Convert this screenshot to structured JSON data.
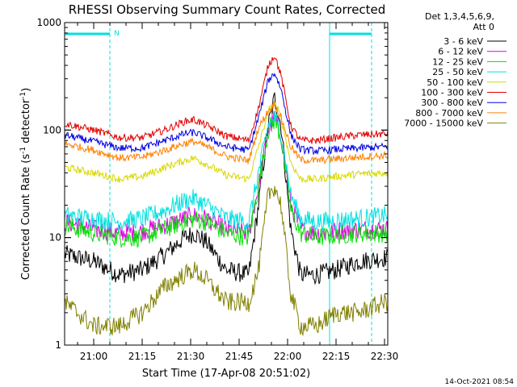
{
  "chart_data": {
    "type": "line",
    "title": "RHESSI Observing Summary Count Rates, Corrected",
    "ylabel_prefix": "Corrected Count Rate (s",
    "ylabel_exp1": "-1",
    "ylabel_mid": " detector",
    "ylabel_exp2": "-1",
    "ylabel_suffix": ")",
    "xlabel": "Start Time (17-Apr-08 20:51:02)",
    "yscale": "log",
    "ylim": [
      1,
      1000
    ],
    "xlim": [
      "20:51",
      "22:31"
    ],
    "y_ticks": [
      {
        "value": 1,
        "label": "1"
      },
      {
        "value": 10,
        "label": "10"
      },
      {
        "value": 100,
        "label": "100"
      },
      {
        "value": 1000,
        "label": "1000"
      }
    ],
    "x_ticks": [
      {
        "time": "21:00",
        "label": "21:00"
      },
      {
        "time": "21:15",
        "label": "21:15"
      },
      {
        "time": "21:30",
        "label": "21:30"
      },
      {
        "time": "21:45",
        "label": "21:45"
      },
      {
        "time": "22:00",
        "label": "22:00"
      },
      {
        "time": "22:15",
        "label": "22:15"
      },
      {
        "time": "22:30",
        "label": "22:30"
      }
    ],
    "legend_header": [
      "Det 1,3,4,5,6,9,",
      "Att 0"
    ],
    "legend_placement": "right, outside plot",
    "night_intervals": [
      [
        "20:51",
        "21:05"
      ],
      [
        "22:13",
        "22:26"
      ]
    ],
    "saa_marker": "N",
    "series": [
      {
        "name": "3 - 6 keV",
        "color": "#000000",
        "times": [
          "20:51",
          "21:00",
          "21:08",
          "21:15",
          "21:22",
          "21:28",
          "21:31",
          "21:35",
          "21:41",
          "21:48",
          "21:51",
          "21:54",
          "21:56",
          "21:58",
          "22:01",
          "22:04",
          "22:09",
          "22:15",
          "22:22",
          "22:30"
        ],
        "values": [
          7,
          6,
          4.5,
          5,
          7,
          10,
          11,
          9,
          5,
          4.5,
          20,
          110,
          200,
          110,
          12,
          4.5,
          4.5,
          5,
          6,
          6.5
        ]
      },
      {
        "name": "6 - 12 keV",
        "color": "#e000e0",
        "times": [
          "20:51",
          "21:00",
          "21:08",
          "21:15",
          "21:22",
          "21:28",
          "21:31",
          "21:35",
          "21:41",
          "21:48",
          "21:51",
          "21:54",
          "21:56",
          "21:58",
          "22:01",
          "22:04",
          "22:09",
          "22:15",
          "22:22",
          "22:30"
        ],
        "values": [
          14,
          12,
          11,
          11.5,
          13,
          15,
          16,
          15,
          12,
          11,
          30,
          100,
          130,
          90,
          20,
          12,
          11,
          11.5,
          12,
          12
        ]
      },
      {
        "name": "12 - 25 keV",
        "color": "#00e000",
        "times": [
          "20:51",
          "21:00",
          "21:08",
          "21:15",
          "21:22",
          "21:28",
          "21:31",
          "21:35",
          "21:41",
          "21:48",
          "21:51",
          "21:54",
          "21:56",
          "21:58",
          "22:01",
          "22:04",
          "22:09",
          "22:15",
          "22:22",
          "22:30"
        ],
        "values": [
          13,
          11,
          10,
          10,
          12,
          14,
          15,
          14,
          11,
          10,
          30,
          100,
          125,
          85,
          18,
          11,
          10,
          10.5,
          11,
          11
        ]
      },
      {
        "name": "25 - 50 keV",
        "color": "#00e0e0",
        "times": [
          "20:51",
          "21:00",
          "21:08",
          "21:15",
          "21:22",
          "21:28",
          "21:31",
          "21:35",
          "21:41",
          "21:48",
          "21:51",
          "21:54",
          "21:56",
          "21:58",
          "22:01",
          "22:04",
          "22:09",
          "22:15",
          "22:22",
          "22:30"
        ],
        "values": [
          16,
          15,
          14,
          15,
          18,
          22,
          23,
          20,
          15,
          14,
          40,
          110,
          130,
          95,
          25,
          15,
          14,
          14.5,
          15,
          16
        ]
      },
      {
        "name": "50 - 100 keV",
        "color": "#d8d800",
        "times": [
          "20:51",
          "21:00",
          "21:08",
          "21:15",
          "21:22",
          "21:28",
          "21:31",
          "21:35",
          "21:41",
          "21:48",
          "21:51",
          "21:54",
          "21:56",
          "21:58",
          "22:01",
          "22:04",
          "22:09",
          "22:15",
          "22:22",
          "22:30"
        ],
        "values": [
          45,
          40,
          35,
          37,
          45,
          52,
          55,
          48,
          38,
          35,
          70,
          150,
          180,
          130,
          50,
          35,
          35,
          37,
          39,
          40
        ]
      },
      {
        "name": "100 - 300 keV",
        "color": "#e00000",
        "times": [
          "20:51",
          "21:00",
          "21:08",
          "21:15",
          "21:22",
          "21:28",
          "21:31",
          "21:35",
          "21:41",
          "21:48",
          "21:51",
          "21:54",
          "21:56",
          "21:58",
          "22:01",
          "22:04",
          "22:09",
          "22:15",
          "22:22",
          "22:30"
        ],
        "values": [
          115,
          100,
          85,
          85,
          100,
          120,
          125,
          110,
          88,
          80,
          160,
          400,
          500,
          320,
          110,
          80,
          80,
          85,
          90,
          92
        ]
      },
      {
        "name": "300 - 800 keV",
        "color": "#0000e0",
        "times": [
          "20:51",
          "21:00",
          "21:08",
          "21:15",
          "21:22",
          "21:28",
          "21:31",
          "21:35",
          "21:41",
          "21:48",
          "21:51",
          "21:54",
          "21:56",
          "21:58",
          "22:01",
          "22:04",
          "22:09",
          "22:15",
          "22:22",
          "22:30"
        ],
        "values": [
          90,
          78,
          68,
          68,
          80,
          92,
          95,
          85,
          70,
          65,
          130,
          290,
          340,
          240,
          90,
          66,
          64,
          66,
          68,
          70
        ]
      },
      {
        "name": "800 - 7000 keV",
        "color": "#ff8000",
        "times": [
          "20:51",
          "21:00",
          "21:08",
          "21:15",
          "21:22",
          "21:28",
          "21:31",
          "21:35",
          "21:41",
          "21:48",
          "21:51",
          "21:54",
          "21:56",
          "21:58",
          "22:01",
          "22:04",
          "22:09",
          "22:15",
          "22:22",
          "22:30"
        ],
        "values": [
          75,
          65,
          55,
          56,
          65,
          75,
          78,
          70,
          57,
          52,
          105,
          150,
          175,
          130,
          70,
          53,
          52,
          54,
          56,
          58
        ]
      },
      {
        "name": "7000 - 15000 keV",
        "color": "#808000",
        "times": [
          "20:51",
          "21:00",
          "21:08",
          "21:15",
          "21:22",
          "21:28",
          "21:31",
          "21:35",
          "21:41",
          "21:48",
          "21:51",
          "21:54",
          "21:56",
          "21:58",
          "22:01",
          "22:04",
          "22:09",
          "22:15",
          "22:22",
          "22:30"
        ],
        "values": [
          2.5,
          1.5,
          1.5,
          2,
          3.5,
          4.5,
          5,
          4,
          2.5,
          2.5,
          5,
          25,
          30,
          20,
          3,
          1.5,
          1.5,
          2,
          2,
          2.5
        ]
      }
    ]
  },
  "footer": {
    "timestamp": "14-Oct-2021 08:54"
  }
}
